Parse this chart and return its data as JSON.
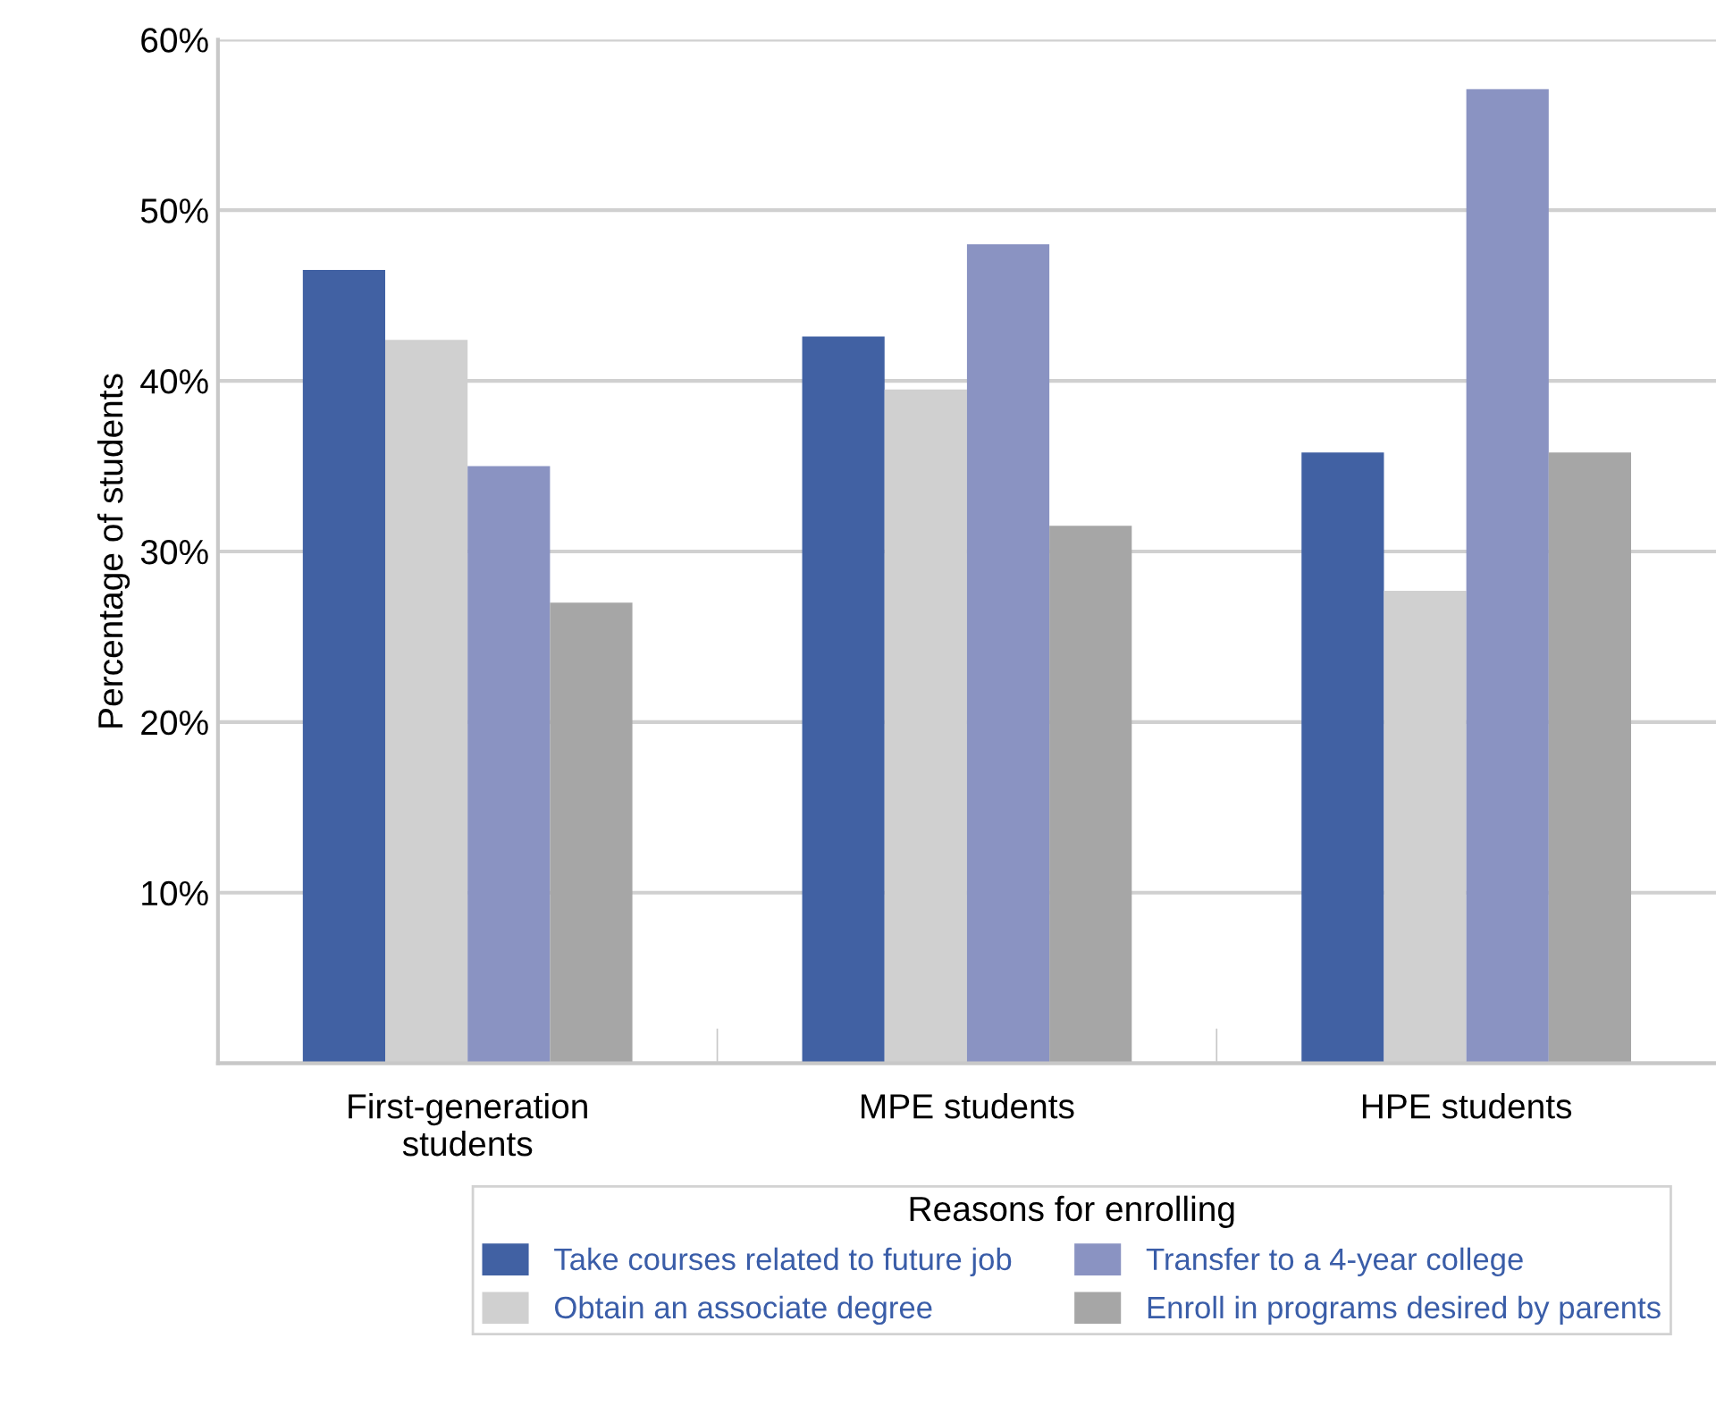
{
  "chart_data": {
    "type": "bar",
    "ylabel": "Percentage of students",
    "legend_title": "Reasons for enrolling",
    "categories": [
      "First-generation\nstudents",
      "MPE students",
      "HPE students"
    ],
    "series": [
      {
        "name": "Take courses related to future job",
        "color": "#4161a3",
        "values": [
          46.5,
          42.6,
          35.8
        ]
      },
      {
        "name": "Obtain an associate degree",
        "color": "#d0d0d0",
        "values": [
          42.4,
          39.5,
          27.7
        ]
      },
      {
        "name": "Transfer to a 4-year college",
        "color": "#8a93c2",
        "values": [
          35.0,
          48.0,
          57.1
        ]
      },
      {
        "name": "Enroll in programs desired by parents",
        "color": "#a6a6a6",
        "values": [
          27.0,
          31.5,
          35.8
        ]
      }
    ],
    "ylim": [
      0,
      60
    ],
    "yticks": [
      {
        "value": 0,
        "label": null
      },
      {
        "value": 10,
        "label": "10%"
      },
      {
        "value": 20,
        "label": "20%"
      },
      {
        "value": 30,
        "label": "30%"
      },
      {
        "value": 40,
        "label": "40%"
      },
      {
        "value": 50,
        "label": "50%"
      },
      {
        "value": 60,
        "label": "60%"
      }
    ],
    "grid": "y",
    "legend": "bottom"
  }
}
